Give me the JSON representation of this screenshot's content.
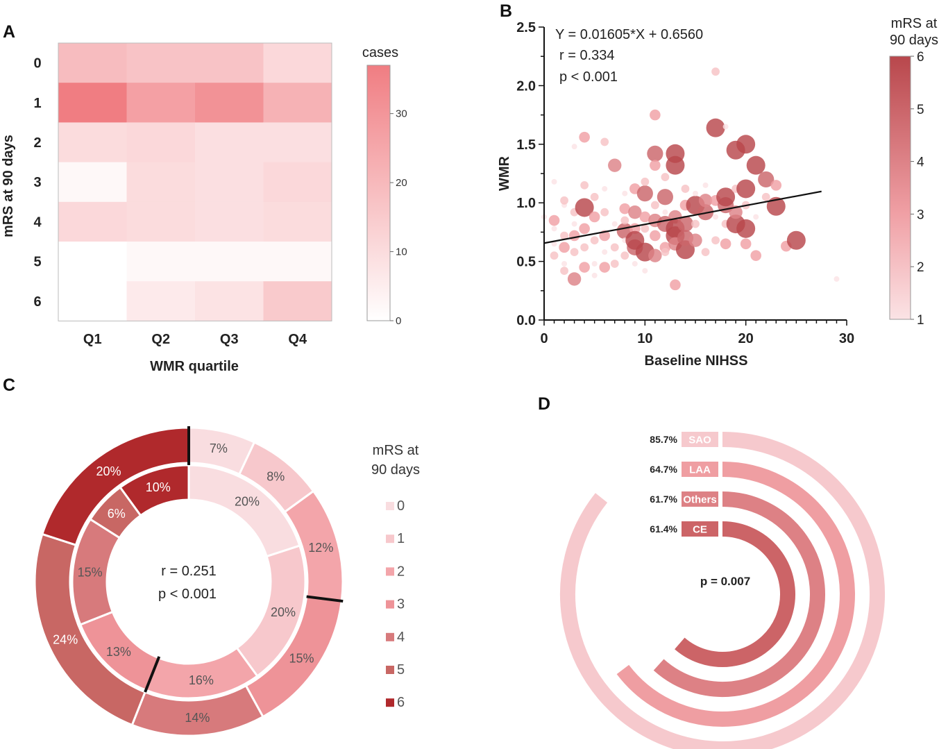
{
  "panels": {
    "a": "A",
    "b": "B",
    "c": "C",
    "d": "D"
  },
  "colors": {
    "mrs": [
      "#f9dde0",
      "#f7c8cc",
      "#f3a5aa",
      "#ee9398",
      "#d77a7c",
      "#c86764",
      "#b0292c"
    ],
    "heat_max": "#f07d82",
    "heat_min": "#ffffff",
    "bar_outer": "#f6c9cd",
    "bar_2": "#ef9ea2",
    "bar_3": "#dd8185",
    "bar_inner": "#cc6467"
  },
  "chart_data": [
    {
      "type": "heatmap",
      "panel": "A",
      "xlabel": "WMR quartile",
      "ylabel": "mRS at 90 days",
      "categories": [
        "Q1",
        "Q2",
        "Q3",
        "Q4"
      ],
      "rows": [
        "0",
        "1",
        "2",
        "3",
        "4",
        "5",
        "6"
      ],
      "values": [
        [
          19,
          17,
          17,
          11
        ],
        [
          37,
          27,
          31,
          22
        ],
        [
          10,
          11,
          9,
          9
        ],
        [
          2,
          10,
          9,
          11
        ],
        [
          11,
          10,
          9,
          10
        ],
        [
          0,
          2,
          2,
          2
        ],
        [
          0,
          6,
          8,
          15
        ]
      ],
      "colorbar": {
        "title": "cases",
        "min": 0,
        "max": 37,
        "ticks": [
          0,
          10,
          20,
          30
        ]
      }
    },
    {
      "type": "scatter",
      "panel": "B",
      "xlabel": "Baseline NIHSS",
      "ylabel": "WMR",
      "xlim": [
        0,
        30
      ],
      "ylim": [
        0,
        2.5
      ],
      "xticks": [
        0,
        10,
        20,
        30
      ],
      "yticks": [
        0.0,
        0.5,
        1.0,
        1.5,
        2.0,
        2.5
      ],
      "regression": {
        "slope": 0.01605,
        "intercept": 0.656,
        "x_range": [
          0,
          27.5
        ]
      },
      "annotations": [
        "Y = 0.01605*X + 0.6560",
        "r = 0.334",
        "p < 0.001"
      ],
      "colorbar": {
        "title_lines": [
          "mRS at",
          "90 days"
        ],
        "min": 1,
        "max": 6,
        "ticks": [
          1,
          2,
          3,
          4,
          5,
          6
        ]
      },
      "points": [
        [
          0,
          0.88,
          1
        ],
        [
          1,
          0.78,
          1
        ],
        [
          1,
          0.65,
          1
        ],
        [
          1,
          0.55,
          2
        ],
        [
          1,
          1.18,
          1
        ],
        [
          1,
          0.85,
          3
        ],
        [
          2,
          0.48,
          1
        ],
        [
          2,
          0.72,
          2
        ],
        [
          2,
          0.98,
          1
        ],
        [
          2,
          0.62,
          3
        ],
        [
          2,
          0.42,
          2
        ],
        [
          2,
          1.02,
          2
        ],
        [
          3,
          0.35,
          4
        ],
        [
          3,
          0.58,
          2
        ],
        [
          3,
          0.82,
          1
        ],
        [
          3,
          1.48,
          1
        ],
        [
          3,
          0.72,
          3
        ],
        [
          3,
          0.92,
          2
        ],
        [
          4,
          0.45,
          3
        ],
        [
          4,
          0.62,
          2
        ],
        [
          4,
          0.78,
          3
        ],
        [
          4,
          0.96,
          6
        ],
        [
          4,
          1.56,
          3
        ],
        [
          4,
          1.15,
          2
        ],
        [
          5,
          0.48,
          1
        ],
        [
          5,
          0.68,
          2
        ],
        [
          5,
          0.88,
          3
        ],
        [
          5,
          0.38,
          1
        ],
        [
          5,
          1.05,
          2
        ],
        [
          6,
          0.45,
          3
        ],
        [
          6,
          0.72,
          3
        ],
        [
          6,
          1.12,
          1
        ],
        [
          6,
          1.52,
          2
        ],
        [
          6,
          0.58,
          1
        ],
        [
          6,
          0.92,
          2
        ],
        [
          7,
          0.62,
          2
        ],
        [
          7,
          0.82,
          1
        ],
        [
          7,
          1.32,
          4
        ],
        [
          7,
          0.48,
          2
        ],
        [
          8,
          0.55,
          2
        ],
        [
          8,
          0.76,
          5
        ],
        [
          8,
          0.95,
          3
        ],
        [
          8,
          0.68,
          1
        ],
        [
          8,
          1.08,
          1
        ],
        [
          8,
          0.85,
          2
        ],
        [
          9,
          0.62,
          5
        ],
        [
          9,
          0.78,
          3
        ],
        [
          9,
          0.92,
          4
        ],
        [
          9,
          1.12,
          3
        ],
        [
          9,
          0.48,
          1
        ],
        [
          9,
          0.68,
          6
        ],
        [
          10,
          0.58,
          6
        ],
        [
          10,
          0.78,
          2
        ],
        [
          10,
          1.08,
          5
        ],
        [
          10,
          0.88,
          3
        ],
        [
          10,
          1.18,
          2
        ],
        [
          10,
          0.42,
          1
        ],
        [
          11,
          0.55,
          4
        ],
        [
          11,
          0.72,
          3
        ],
        [
          11,
          0.98,
          2
        ],
        [
          11,
          1.42,
          5
        ],
        [
          11,
          1.75,
          3
        ],
        [
          11,
          1.32,
          3
        ],
        [
          11,
          0.85,
          4
        ],
        [
          12,
          0.62,
          3
        ],
        [
          12,
          0.82,
          5
        ],
        [
          12,
          1.05,
          5
        ],
        [
          12,
          0.58,
          2
        ],
        [
          12,
          0.92,
          1
        ],
        [
          12,
          1.22,
          2
        ],
        [
          13,
          0.72,
          6
        ],
        [
          13,
          0.88,
          4
        ],
        [
          13,
          1.32,
          6
        ],
        [
          13,
          1.42,
          6
        ],
        [
          13,
          0.3,
          3
        ],
        [
          13,
          0.78,
          6
        ],
        [
          13,
          0.65,
          4
        ],
        [
          14,
          0.6,
          6
        ],
        [
          14,
          0.82,
          5
        ],
        [
          14,
          0.98,
          3
        ],
        [
          14,
          1.12,
          2
        ],
        [
          14,
          0.7,
          5
        ],
        [
          15,
          0.68,
          4
        ],
        [
          15,
          0.98,
          6
        ],
        [
          15,
          0.82,
          2
        ],
        [
          15,
          1.08,
          1
        ],
        [
          16,
          0.92,
          5
        ],
        [
          16,
          1.02,
          4
        ],
        [
          16,
          0.58,
          2
        ],
        [
          16,
          1.15,
          1
        ],
        [
          17,
          1.02,
          3
        ],
        [
          17,
          0.68,
          2
        ],
        [
          17,
          1.64,
          6
        ],
        [
          17,
          2.12,
          2
        ],
        [
          17,
          0.88,
          1
        ],
        [
          18,
          0.98,
          5
        ],
        [
          18,
          1.05,
          6
        ],
        [
          18,
          0.65,
          3
        ],
        [
          18,
          0.82,
          2
        ],
        [
          18,
          1.65,
          1
        ],
        [
          19,
          1.45,
          6
        ],
        [
          19,
          0.82,
          6
        ],
        [
          19,
          1.12,
          2
        ],
        [
          19,
          0.92,
          4
        ],
        [
          20,
          0.65,
          3
        ],
        [
          20,
          1.12,
          6
        ],
        [
          20,
          1.5,
          6
        ],
        [
          20,
          0.78,
          6
        ],
        [
          20,
          0.98,
          2
        ],
        [
          21,
          1.32,
          6
        ],
        [
          21,
          0.55,
          3
        ],
        [
          21,
          0.88,
          1
        ],
        [
          22,
          1.2,
          5
        ],
        [
          22,
          1.05,
          2
        ],
        [
          23,
          0.97,
          6
        ],
        [
          23,
          1.15,
          3
        ],
        [
          24,
          0.63,
          3
        ],
        [
          25,
          0.68,
          6
        ],
        [
          29,
          0.35,
          1
        ]
      ]
    },
    {
      "type": "pie",
      "panel": "C",
      "variant": "double-donut",
      "categories": [
        "0",
        "1",
        "2",
        "3",
        "4",
        "5",
        "6"
      ],
      "outer": [
        7,
        8,
        12,
        15,
        14,
        24,
        20
      ],
      "inner": [
        20,
        20,
        16,
        13,
        15,
        6,
        10
      ],
      "outer_labels": [
        "7%",
        "8%",
        "12%",
        "15%",
        "14%",
        "24%",
        "20%"
      ],
      "inner_labels": [
        "20%",
        "20%",
        "16%",
        "13%",
        "15%",
        "6%",
        "10%"
      ],
      "center": [
        "r = 0.251",
        "p < 0.001"
      ],
      "legend_title": [
        "mRS at",
        "90 days"
      ]
    },
    {
      "type": "bar",
      "panel": "D",
      "variant": "radial",
      "categories": [
        "SAO",
        "LAA",
        "Others",
        "CE"
      ],
      "values": [
        85.7,
        64.7,
        61.7,
        61.4
      ],
      "labels": [
        "85.7%",
        "64.7%",
        "61.7%",
        "61.4%"
      ],
      "annotation": "p = 0.007"
    }
  ]
}
